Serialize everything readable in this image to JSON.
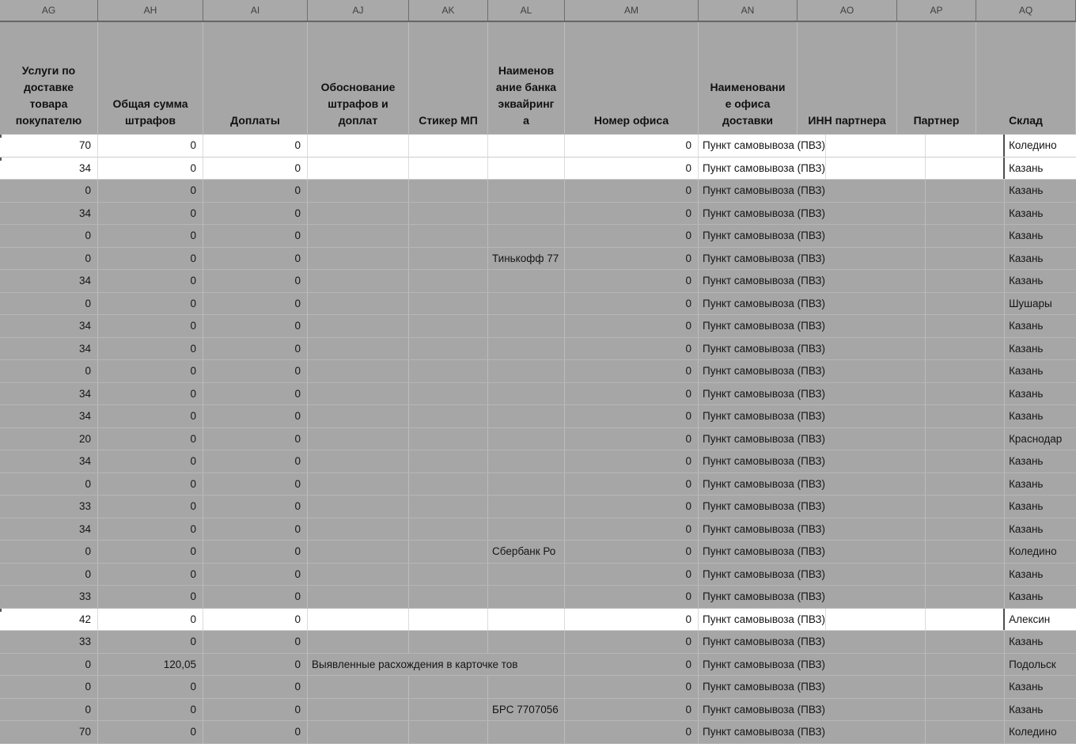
{
  "sheet": {
    "column_letters": [
      "AG",
      "AH",
      "AI",
      "AJ",
      "AK",
      "AL",
      "AM",
      "AN",
      "AO",
      "AP",
      "AQ"
    ],
    "field_headers": [
      "Услуги по\nдоставке\nтовара\nпокупателю",
      "Общая сумма\nштрафов",
      "Доплаты",
      "Обоснование\nштрафов и\nдоплат",
      "Стикер МП",
      "Наименов\nание банка\nэквайринг\nа",
      "Номер офиса",
      "Наименовани\nе офиса\nдоставки",
      "ИНН партнера",
      "Партнер",
      "Склад"
    ],
    "colors": {
      "sheet_fill": "#a6a6a6",
      "highlight_row_fill": "#ffffff",
      "gridline": "#bcbcbc",
      "letter_strip_separator": "#6e6e6e",
      "text": "#151515",
      "selection_border": "#4e4e4e"
    },
    "rows": [
      {
        "ag": "70",
        "ah": "0",
        "ai": "0",
        "aj": "",
        "ak": "",
        "al": "",
        "am": "0",
        "an": "Пункт самовывоза (ПВЗ)",
        "ao": "",
        "ap": "",
        "aq": "Коледино",
        "highlight": true
      },
      {
        "ag": "34",
        "ah": "0",
        "ai": "0",
        "aj": "",
        "ak": "",
        "al": "",
        "am": "0",
        "an": "Пункт самовывоза (ПВЗ)",
        "ao": "",
        "ap": "",
        "aq": "Казань",
        "highlight": true
      },
      {
        "ag": "0",
        "ah": "0",
        "ai": "0",
        "aj": "",
        "ak": "",
        "al": "",
        "am": "0",
        "an": "Пункт самовывоза (ПВЗ)",
        "ao": "",
        "ap": "",
        "aq": "Казань",
        "highlight": false
      },
      {
        "ag": "34",
        "ah": "0",
        "ai": "0",
        "aj": "",
        "ak": "",
        "al": "",
        "am": "0",
        "an": "Пункт самовывоза (ПВЗ)",
        "ao": "",
        "ap": "",
        "aq": "Казань",
        "highlight": false
      },
      {
        "ag": "0",
        "ah": "0",
        "ai": "0",
        "aj": "",
        "ak": "",
        "al": "",
        "am": "0",
        "an": "Пункт самовывоза (ПВЗ)",
        "ao": "",
        "ap": "",
        "aq": "Казань",
        "highlight": false
      },
      {
        "ag": "0",
        "ah": "0",
        "ai": "0",
        "aj": "",
        "ak": "",
        "al": "Тинькофф 77",
        "am": "0",
        "an": "Пункт самовывоза (ПВЗ)",
        "ao": "",
        "ap": "",
        "aq": "Казань",
        "highlight": false
      },
      {
        "ag": "34",
        "ah": "0",
        "ai": "0",
        "aj": "",
        "ak": "",
        "al": "",
        "am": "0",
        "an": "Пункт самовывоза (ПВЗ)",
        "ao": "",
        "ap": "",
        "aq": "Казань",
        "highlight": false
      },
      {
        "ag": "0",
        "ah": "0",
        "ai": "0",
        "aj": "",
        "ak": "",
        "al": "",
        "am": "0",
        "an": "Пункт самовывоза (ПВЗ)",
        "ao": "",
        "ap": "",
        "aq": "Шушары",
        "highlight": false
      },
      {
        "ag": "34",
        "ah": "0",
        "ai": "0",
        "aj": "",
        "ak": "",
        "al": "",
        "am": "0",
        "an": "Пункт самовывоза (ПВЗ)",
        "ao": "",
        "ap": "",
        "aq": "Казань",
        "highlight": false
      },
      {
        "ag": "34",
        "ah": "0",
        "ai": "0",
        "aj": "",
        "ak": "",
        "al": "",
        "am": "0",
        "an": "Пункт самовывоза (ПВЗ)",
        "ao": "",
        "ap": "",
        "aq": "Казань",
        "highlight": false
      },
      {
        "ag": "0",
        "ah": "0",
        "ai": "0",
        "aj": "",
        "ak": "",
        "al": "",
        "am": "0",
        "an": "Пункт самовывоза (ПВЗ)",
        "ao": "",
        "ap": "",
        "aq": "Казань",
        "highlight": false
      },
      {
        "ag": "34",
        "ah": "0",
        "ai": "0",
        "aj": "",
        "ak": "",
        "al": "",
        "am": "0",
        "an": "Пункт самовывоза (ПВЗ)",
        "ao": "",
        "ap": "",
        "aq": "Казань",
        "highlight": false
      },
      {
        "ag": "34",
        "ah": "0",
        "ai": "0",
        "aj": "",
        "ak": "",
        "al": "",
        "am": "0",
        "an": "Пункт самовывоза (ПВЗ)",
        "ao": "",
        "ap": "",
        "aq": "Казань",
        "highlight": false
      },
      {
        "ag": "20",
        "ah": "0",
        "ai": "0",
        "aj": "",
        "ak": "",
        "al": "",
        "am": "0",
        "an": "Пункт самовывоза (ПВЗ)",
        "ao": "",
        "ap": "",
        "aq": "Краснодар",
        "highlight": false
      },
      {
        "ag": "34",
        "ah": "0",
        "ai": "0",
        "aj": "",
        "ak": "",
        "al": "",
        "am": "0",
        "an": "Пункт самовывоза (ПВЗ)",
        "ao": "",
        "ap": "",
        "aq": "Казань",
        "highlight": false
      },
      {
        "ag": "0",
        "ah": "0",
        "ai": "0",
        "aj": "",
        "ak": "",
        "al": "",
        "am": "0",
        "an": "Пункт самовывоза (ПВЗ)",
        "ao": "",
        "ap": "",
        "aq": "Казань",
        "highlight": false
      },
      {
        "ag": "33",
        "ah": "0",
        "ai": "0",
        "aj": "",
        "ak": "",
        "al": "",
        "am": "0",
        "an": "Пункт самовывоза (ПВЗ)",
        "ao": "",
        "ap": "",
        "aq": "Казань",
        "highlight": false
      },
      {
        "ag": "34",
        "ah": "0",
        "ai": "0",
        "aj": "",
        "ak": "",
        "al": "",
        "am": "0",
        "an": "Пункт самовывоза (ПВЗ)",
        "ao": "",
        "ap": "",
        "aq": "Казань",
        "highlight": false
      },
      {
        "ag": "0",
        "ah": "0",
        "ai": "0",
        "aj": "",
        "ak": "",
        "al": "Сбербанк Ро",
        "am": "0",
        "an": "Пункт самовывоза (ПВЗ)",
        "ao": "",
        "ap": "",
        "aq": "Коледино",
        "highlight": false
      },
      {
        "ag": "0",
        "ah": "0",
        "ai": "0",
        "aj": "",
        "ak": "",
        "al": "",
        "am": "0",
        "an": "Пункт самовывоза (ПВЗ)",
        "ao": "",
        "ap": "",
        "aq": "Казань",
        "highlight": false
      },
      {
        "ag": "33",
        "ah": "0",
        "ai": "0",
        "aj": "",
        "ak": "",
        "al": "",
        "am": "0",
        "an": "Пункт самовывоза (ПВЗ)",
        "ao": "",
        "ap": "",
        "aq": "Казань",
        "highlight": false
      },
      {
        "ag": "42",
        "ah": "0",
        "ai": "0",
        "aj": "",
        "ak": "",
        "al": "",
        "am": "0",
        "an": "Пункт самовывоза (ПВЗ)",
        "ao": "",
        "ap": "",
        "aq": "Алексин",
        "highlight": true
      },
      {
        "ag": "33",
        "ah": "0",
        "ai": "0",
        "aj": "",
        "ak": "",
        "al": "",
        "am": "0",
        "an": "Пункт самовывоза (ПВЗ)",
        "ao": "",
        "ap": "",
        "aq": "Казань",
        "highlight": false
      },
      {
        "ag": "0",
        "ah": "120,05",
        "ai": "0",
        "aj": "Выявленные расхождения в карточке тов",
        "ak": "",
        "al": "",
        "am": "0",
        "an": "Пункт самовывоза (ПВЗ)",
        "ao": "",
        "ap": "",
        "aq": "Подольск",
        "highlight": false
      },
      {
        "ag": "0",
        "ah": "0",
        "ai": "0",
        "aj": "",
        "ak": "",
        "al": "",
        "am": "0",
        "an": "Пункт самовывоза (ПВЗ)",
        "ao": "",
        "ap": "",
        "aq": "Казань",
        "highlight": false
      },
      {
        "ag": "0",
        "ah": "0",
        "ai": "0",
        "aj": "",
        "ak": "",
        "al": "БРС 7707056",
        "am": "0",
        "an": "Пункт самовывоза (ПВЗ)",
        "ao": "",
        "ap": "",
        "aq": "Казань",
        "highlight": false
      },
      {
        "ag": "70",
        "ah": "0",
        "ai": "0",
        "aj": "",
        "ak": "",
        "al": "",
        "am": "0",
        "an": "Пункт самовывоза (ПВЗ)",
        "ao": "",
        "ap": "",
        "aq": "Коледино",
        "highlight": false
      }
    ]
  }
}
